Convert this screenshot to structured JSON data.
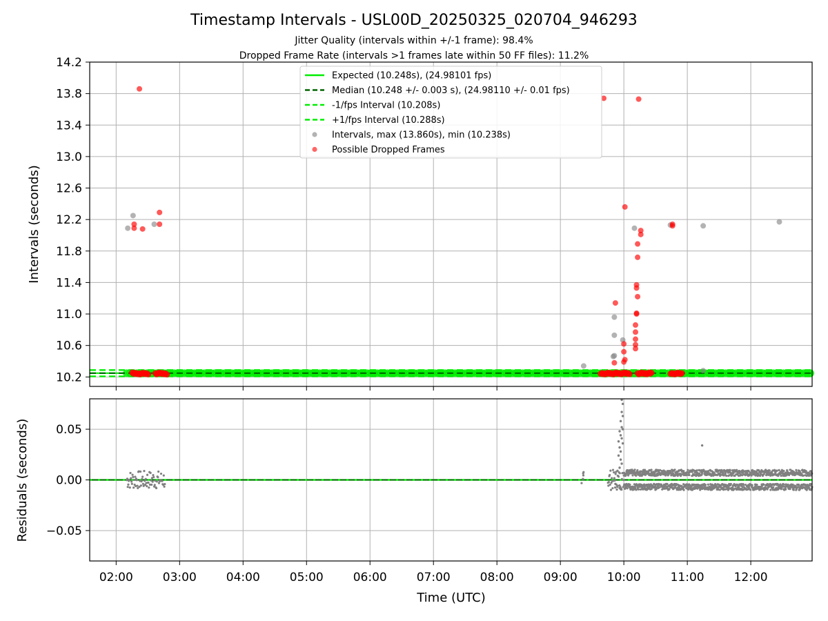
{
  "title": "Timestamp Intervals - USL00D_20250325_020704_946293",
  "subtitle_1": "Jitter Quality (intervals within +/-1 frame): 98.4%",
  "subtitle_2": "Dropped Frame Rate (intervals >1 frames late within 50 FF files): 11.2%",
  "colors": {
    "expected": "#00ee00",
    "median": "#006400",
    "fps_band": "#00ee00",
    "intervals": "#808080",
    "dropped": "#ff0000"
  },
  "chart_data": [
    {
      "type": "scatter",
      "ylabel": "Intervals (seconds)",
      "ylim": [
        10.08,
        14.2
      ],
      "yticks": [
        "10.2",
        "10.6",
        "11.0",
        "11.4",
        "11.8",
        "12.2",
        "12.6",
        "13.0",
        "13.4",
        "13.8",
        "14.2"
      ],
      "grid": true,
      "legend_position": "top-center",
      "legend": [
        "Expected (10.248s), (24.98101 fps)",
        "Median (10.248 +/- 0.003 s), (24.98110 +/- 0.01 fps)",
        "-1/fps Interval (10.208s)",
        "+1/fps Interval (10.288s)",
        "Intervals, max (13.860s), min (10.238s)",
        "Possible Dropped Frames"
      ],
      "reference_lines": {
        "expected": 10.248,
        "median": 10.248,
        "minus_1_fps": 10.208,
        "plus_1_fps": 10.288
      },
      "gray_points": [
        [
          "02:11",
          12.09
        ],
        [
          "02:16",
          12.25
        ],
        [
          "02:36",
          12.14
        ],
        [
          "09:22",
          10.34
        ],
        [
          "09:51",
          10.96
        ],
        [
          "09:51",
          10.73
        ],
        [
          "09:51",
          10.47
        ],
        [
          "09:50",
          10.46
        ],
        [
          "09:59",
          10.67
        ],
        [
          "10:10",
          12.09
        ],
        [
          "10:44",
          12.13
        ],
        [
          "11:15",
          12.12
        ],
        [
          "12:27",
          12.17
        ],
        [
          "11:15",
          10.28
        ]
      ],
      "red_points": [
        [
          "02:22",
          13.86
        ],
        [
          "02:17",
          12.14
        ],
        [
          "02:17",
          12.09
        ],
        [
          "02:25",
          12.08
        ],
        [
          "02:41",
          12.29
        ],
        [
          "02:41",
          12.14
        ],
        [
          "09:41",
          13.74
        ],
        [
          "10:14",
          13.73
        ],
        [
          "10:01",
          12.36
        ],
        [
          "10:16",
          12.06
        ],
        [
          "10:16",
          12.01
        ],
        [
          "10:13",
          11.89
        ],
        [
          "10:13",
          11.72
        ],
        [
          "10:12",
          11.37
        ],
        [
          "10:12",
          11.33
        ],
        [
          "10:13",
          11.22
        ],
        [
          "10:12",
          11.01
        ],
        [
          "10:12",
          11.0
        ],
        [
          "09:52",
          11.14
        ],
        [
          "10:11",
          10.86
        ],
        [
          "10:11",
          10.77
        ],
        [
          "10:11",
          10.68
        ],
        [
          "10:11",
          10.61
        ],
        [
          "10:11",
          10.56
        ],
        [
          "10:00",
          10.62
        ],
        [
          "10:00",
          10.52
        ],
        [
          "10:01",
          10.42
        ],
        [
          "10:00",
          10.39
        ],
        [
          "09:51",
          10.38
        ],
        [
          "10:46",
          12.14
        ],
        [
          "10:46",
          12.12
        ]
      ],
      "red_baseline_ranges": [
        [
          "02:15",
          "02:31"
        ],
        [
          "02:37",
          "02:48"
        ],
        [
          "09:38",
          "10:06"
        ],
        [
          "10:13",
          "10:27"
        ],
        [
          "10:44",
          "10:56"
        ]
      ]
    },
    {
      "type": "scatter",
      "ylabel": "Residuals (seconds)",
      "xlabel": "Time (UTC)",
      "ylim": [
        -0.08,
        0.08
      ],
      "yticks": [
        "−0.05",
        "0.00",
        "0.05"
      ],
      "xticks": [
        "02:00",
        "03:00",
        "04:00",
        "05:00",
        "06:00",
        "07:00",
        "08:00",
        "09:00",
        "10:00",
        "11:00",
        "12:00"
      ],
      "xlim": [
        "01:35",
        "12:58"
      ],
      "grid": true,
      "outliers": [
        [
          "09:58",
          0.079
        ],
        [
          "09:59",
          0.075
        ],
        [
          "09:58",
          0.067
        ],
        [
          "09:59",
          0.063
        ],
        [
          "09:57",
          0.058
        ],
        [
          "09:58",
          0.052
        ],
        [
          "09:59",
          0.05
        ],
        [
          "09:56",
          0.048
        ],
        [
          "09:57",
          0.044
        ],
        [
          "09:58",
          0.041
        ],
        [
          "09:55",
          0.038
        ],
        [
          "09:59",
          0.036
        ],
        [
          "09:56",
          0.032
        ],
        [
          "09:57",
          0.028
        ],
        [
          "09:55",
          0.024
        ],
        [
          "09:57",
          0.02
        ],
        [
          "09:58",
          0.016
        ],
        [
          "09:56",
          0.012
        ],
        [
          "09:54",
          0.009
        ],
        [
          "11:14",
          0.034
        ],
        [
          "09:52",
          -0.004
        ],
        [
          "09:54",
          -0.006
        ],
        [
          "09:56",
          -0.008
        ]
      ]
    }
  ]
}
